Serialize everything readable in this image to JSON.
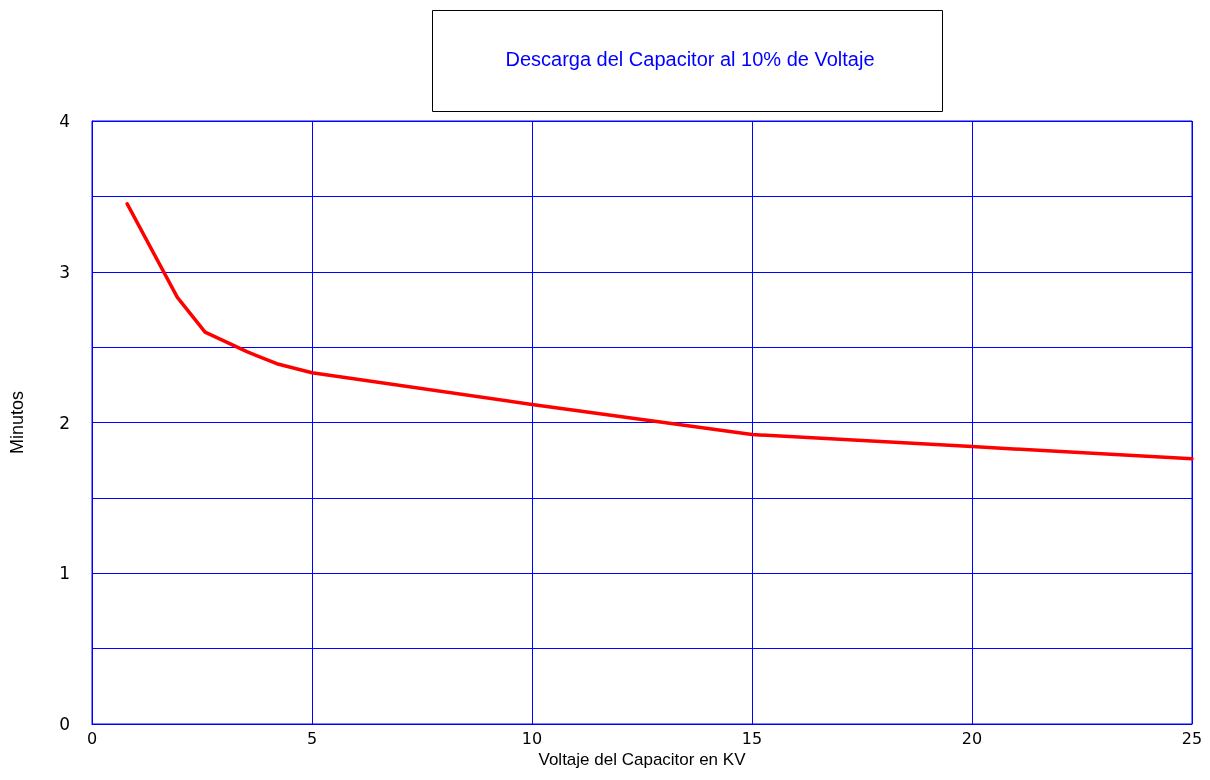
{
  "chart_data": {
    "type": "line",
    "title": "Descarga del Capacitor al 10% de Voltaje",
    "xlabel": "Voltaje del Capacitor en KV",
    "ylabel": "Minutos",
    "series": [
      {
        "color": "#ff0000",
        "x": [
          0.8,
          1.94,
          2.57,
          3.52,
          4.2,
          5,
          10,
          13,
          15,
          20,
          25
        ],
        "values": [
          3.45,
          2.83,
          2.6,
          2.47,
          2.39,
          2.33,
          2.12,
          2.0,
          1.92,
          1.84,
          1.76
        ]
      }
    ],
    "xlim": [
      0,
      25
    ],
    "xticks": [
      0,
      5,
      10,
      15,
      20,
      25
    ],
    "ylim": [
      0,
      4
    ],
    "yticks": [
      0,
      {
        "value": 0.5,
        "label": null
      },
      1,
      {
        "value": 1.5,
        "label": null
      },
      2,
      {
        "value": 2.5,
        "label": null
      },
      3,
      {
        "value": 3.5,
        "label": null
      },
      4
    ],
    "grid": true,
    "marker": "none",
    "line_style": "solid"
  }
}
